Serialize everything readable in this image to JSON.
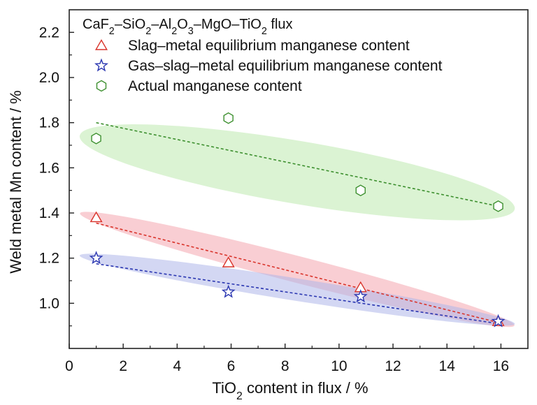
{
  "chart_data": {
    "type": "scatter",
    "title": "CaF2–SiO2–Al2O3–MgO–TiO2 flux",
    "title_parts": [
      {
        "t": "CaF",
        "sub": false
      },
      {
        "t": "2",
        "sub": true
      },
      {
        "t": "–SiO",
        "sub": false
      },
      {
        "t": "2",
        "sub": true
      },
      {
        "t": "–Al",
        "sub": false
      },
      {
        "t": "2",
        "sub": true
      },
      {
        "t": "O",
        "sub": false
      },
      {
        "t": "3",
        "sub": true
      },
      {
        "t": "–MgO–TiO",
        "sub": false
      },
      {
        "t": "2",
        "sub": true
      },
      {
        "t": " flux",
        "sub": false
      }
    ],
    "xlabel": "TiO2 content in flux / %",
    "xlabel_parts": [
      {
        "t": "TiO",
        "sub": false
      },
      {
        "t": "2",
        "sub": true
      },
      {
        "t": " content in flux / %",
        "sub": false
      }
    ],
    "ylabel": "Weld metal Mn content / %",
    "xlim": [
      0,
      17
    ],
    "ylim": [
      0.8,
      2.3
    ],
    "xticks": [
      0,
      2,
      4,
      6,
      8,
      10,
      12,
      14,
      16
    ],
    "yticks": [
      1.0,
      1.2,
      1.4,
      1.6,
      1.8,
      2.0,
      2.2
    ],
    "x_tick_labels": [
      "0",
      "2",
      "4",
      "6",
      "8",
      "10",
      "12",
      "14",
      "16"
    ],
    "y_tick_labels": [
      "1.0",
      "1.2",
      "1.4",
      "1.6",
      "1.8",
      "2.0",
      "2.2"
    ],
    "grid": false,
    "legend_position": "top-left",
    "series": [
      {
        "name": "Slag–metal equilibrium manganese content",
        "marker": "triangle",
        "color": "#d9342b",
        "fill": "#f4a6ae",
        "x": [
          1.0,
          5.9,
          10.8,
          15.9
        ],
        "y": [
          1.38,
          1.18,
          1.07,
          0.92
        ],
        "trend": [
          [
            1.0,
            1.355
          ],
          [
            15.9,
            0.915
          ]
        ]
      },
      {
        "name": "Gas–slag–metal equilibrium manganese content",
        "marker": "star",
        "color": "#2a36b1",
        "fill": "#aeb6ea",
        "x": [
          1.0,
          5.9,
          10.8,
          15.9
        ],
        "y": [
          1.2,
          1.05,
          1.03,
          0.92
        ],
        "trend": [
          [
            1.0,
            1.175
          ],
          [
            15.9,
            0.91
          ]
        ]
      },
      {
        "name": "Actual manganese content",
        "marker": "hexagon",
        "color": "#3c8f2e",
        "fill": "#bde9ae",
        "x": [
          1.0,
          5.9,
          10.8,
          15.9
        ],
        "y": [
          1.73,
          1.82,
          1.5,
          1.43
        ],
        "trend": [
          [
            1.0,
            1.8
          ],
          [
            15.9,
            1.43
          ]
        ]
      }
    ]
  }
}
